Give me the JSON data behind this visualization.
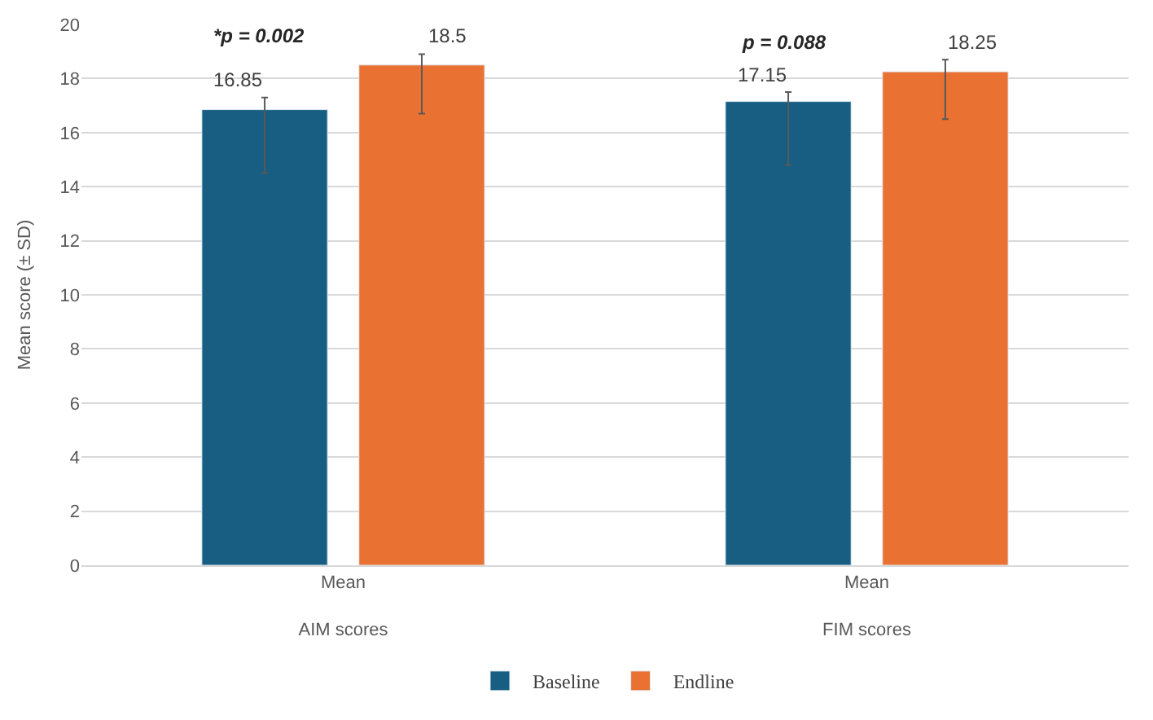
{
  "chart_data": {
    "type": "bar",
    "ylabel": "Mean score (± SD)",
    "categories": [
      "Mean\nAIM scores",
      "Mean\nFIM scores"
    ],
    "series": [
      {
        "name": "Baseline",
        "color": "#175e82",
        "values": [
          16.85,
          17.15
        ],
        "errors": [
          [
            14.5,
            17.3
          ],
          [
            14.8,
            17.5
          ]
        ]
      },
      {
        "name": "Endline",
        "color": "#e97132",
        "values": [
          18.5,
          18.25
        ],
        "errors": [
          [
            16.7,
            18.9
          ],
          [
            16.5,
            18.7
          ]
        ]
      }
    ],
    "annotations": [
      "*p = 0.002",
      "p = 0.088"
    ],
    "data_labels": true,
    "ylim": [
      0,
      20
    ],
    "yticks": [
      0,
      2,
      4,
      6,
      8,
      10,
      12,
      14,
      16,
      18,
      20
    ],
    "grid": "y",
    "legend": "bottom"
  }
}
